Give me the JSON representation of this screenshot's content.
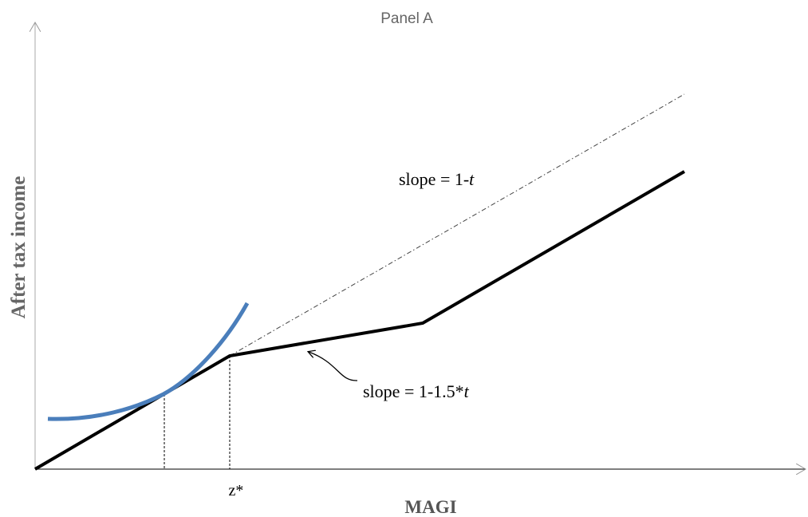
{
  "title": "Panel A",
  "y_axis_label": "After tax income",
  "x_axis_label": "MAGI",
  "x_marker": "z*",
  "annotations": [
    {
      "parts": [
        "slope = 1-",
        "t"
      ]
    },
    {
      "parts": [
        "slope = 1-1.5*",
        "t"
      ]
    }
  ]
}
